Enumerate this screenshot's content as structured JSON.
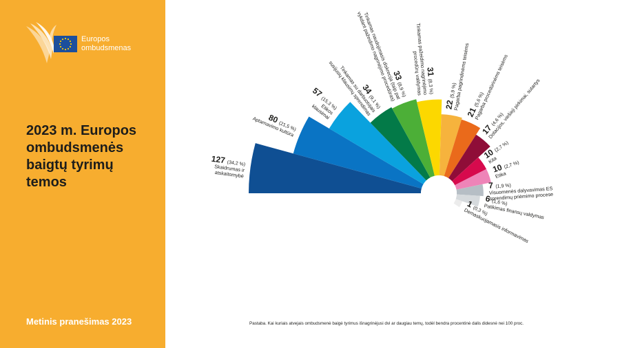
{
  "sidebar": {
    "logo_line1": "Europos",
    "logo_line2": "ombudsmenas",
    "title": "2023 m. Europos ombudsmenės baigtų tyrimų temos",
    "footer": "Metinis pranešimas 2023"
  },
  "colors": {
    "sidebar_bg": "#f7ad2f",
    "eu_flag_blue": "#1c4f9c",
    "eu_flag_stars": "#ffcc00"
  },
  "footnote": "Pastaba. Kai kuriais atvejais ombudsmenė baigė tyrimus išnagrinėjusi dvi ar daugiau temų, todėl bendra procentinė dalis didesnė nei 100 proc.",
  "chart_data": {
    "type": "polar-area",
    "title": "2023 m. Europos ombudsmenės baigtų tyrimų temos",
    "slices": [
      {
        "value": 127,
        "pct": "(34,2 %)",
        "lines": [
          "Skaidrumas ir",
          "atskaitomybė"
        ],
        "color": "#0f4f93"
      },
      {
        "value": 80,
        "pct": "(21,5 %)",
        "lines": [
          "Aptarnavimo kultūra"
        ],
        "color": "#0a74c4"
      },
      {
        "value": 57,
        "pct": "(15,3 %)",
        "lines": [
          "Etikos",
          "klausimai"
        ],
        "color": "#0aa2de"
      },
      {
        "value": 34,
        "pct": "(9,1 %)",
        "lines": [
          "Tinkamas su darbuotojais",
          "susijusių klausimų sprendimas"
        ],
        "color": "#037a48"
      },
      {
        "value": 33,
        "pct": "(8,9 %)",
        "lines": [
          "Tinkamas naudojimasis diskrecija (taip pat",
          "vykdant pažeidimo nagrinėjimo procedūras)"
        ],
        "color": "#4caf37"
      },
      {
        "value": 31,
        "pct": "(8,3 %)",
        "lines": [
          "Tinkamas pažeidimo nagrinėjimo",
          "procedūrų valdymas"
        ],
        "color": "#fcd800"
      },
      {
        "value": 22,
        "pct": "(5,9 %)",
        "lines": [
          "Pagarba pagrindinėms teisėms"
        ],
        "color": "#f6b33d"
      },
      {
        "value": 21,
        "pct": "(5,6 %)",
        "lines": [
          "Pagarba procedūrinėms teisėms"
        ],
        "color": "#ea6a1b"
      },
      {
        "value": 17,
        "pct": "(4,6 %)",
        "lines": [
          "Dotacijos, viešieji pirkimai, sutartys"
        ],
        "color": "#8f0d38"
      },
      {
        "value": 10,
        "pct": "(2,7 %)",
        "lines": [
          "Kita"
        ],
        "color": "#d70a4d"
      },
      {
        "value": 10,
        "pct": "(2,7 %)",
        "lines": [
          "Etika"
        ],
        "color": "#ee84b8"
      },
      {
        "value": 7,
        "pct": "(1,9 %)",
        "lines": [
          "Visuomenės dalyvavimas ES",
          "sprendimų priėmimo procese"
        ],
        "color": "#b6bec5"
      },
      {
        "value": 6,
        "pct": "(1,6 %)",
        "lines": [
          "Patikimas finansų valdymas"
        ],
        "color": "#d6dadd"
      },
      {
        "value": 1,
        "pct": "(0,3 %)",
        "lines": [
          "Demaskuojamasis informavimas"
        ],
        "color": "#ececec"
      }
    ]
  }
}
